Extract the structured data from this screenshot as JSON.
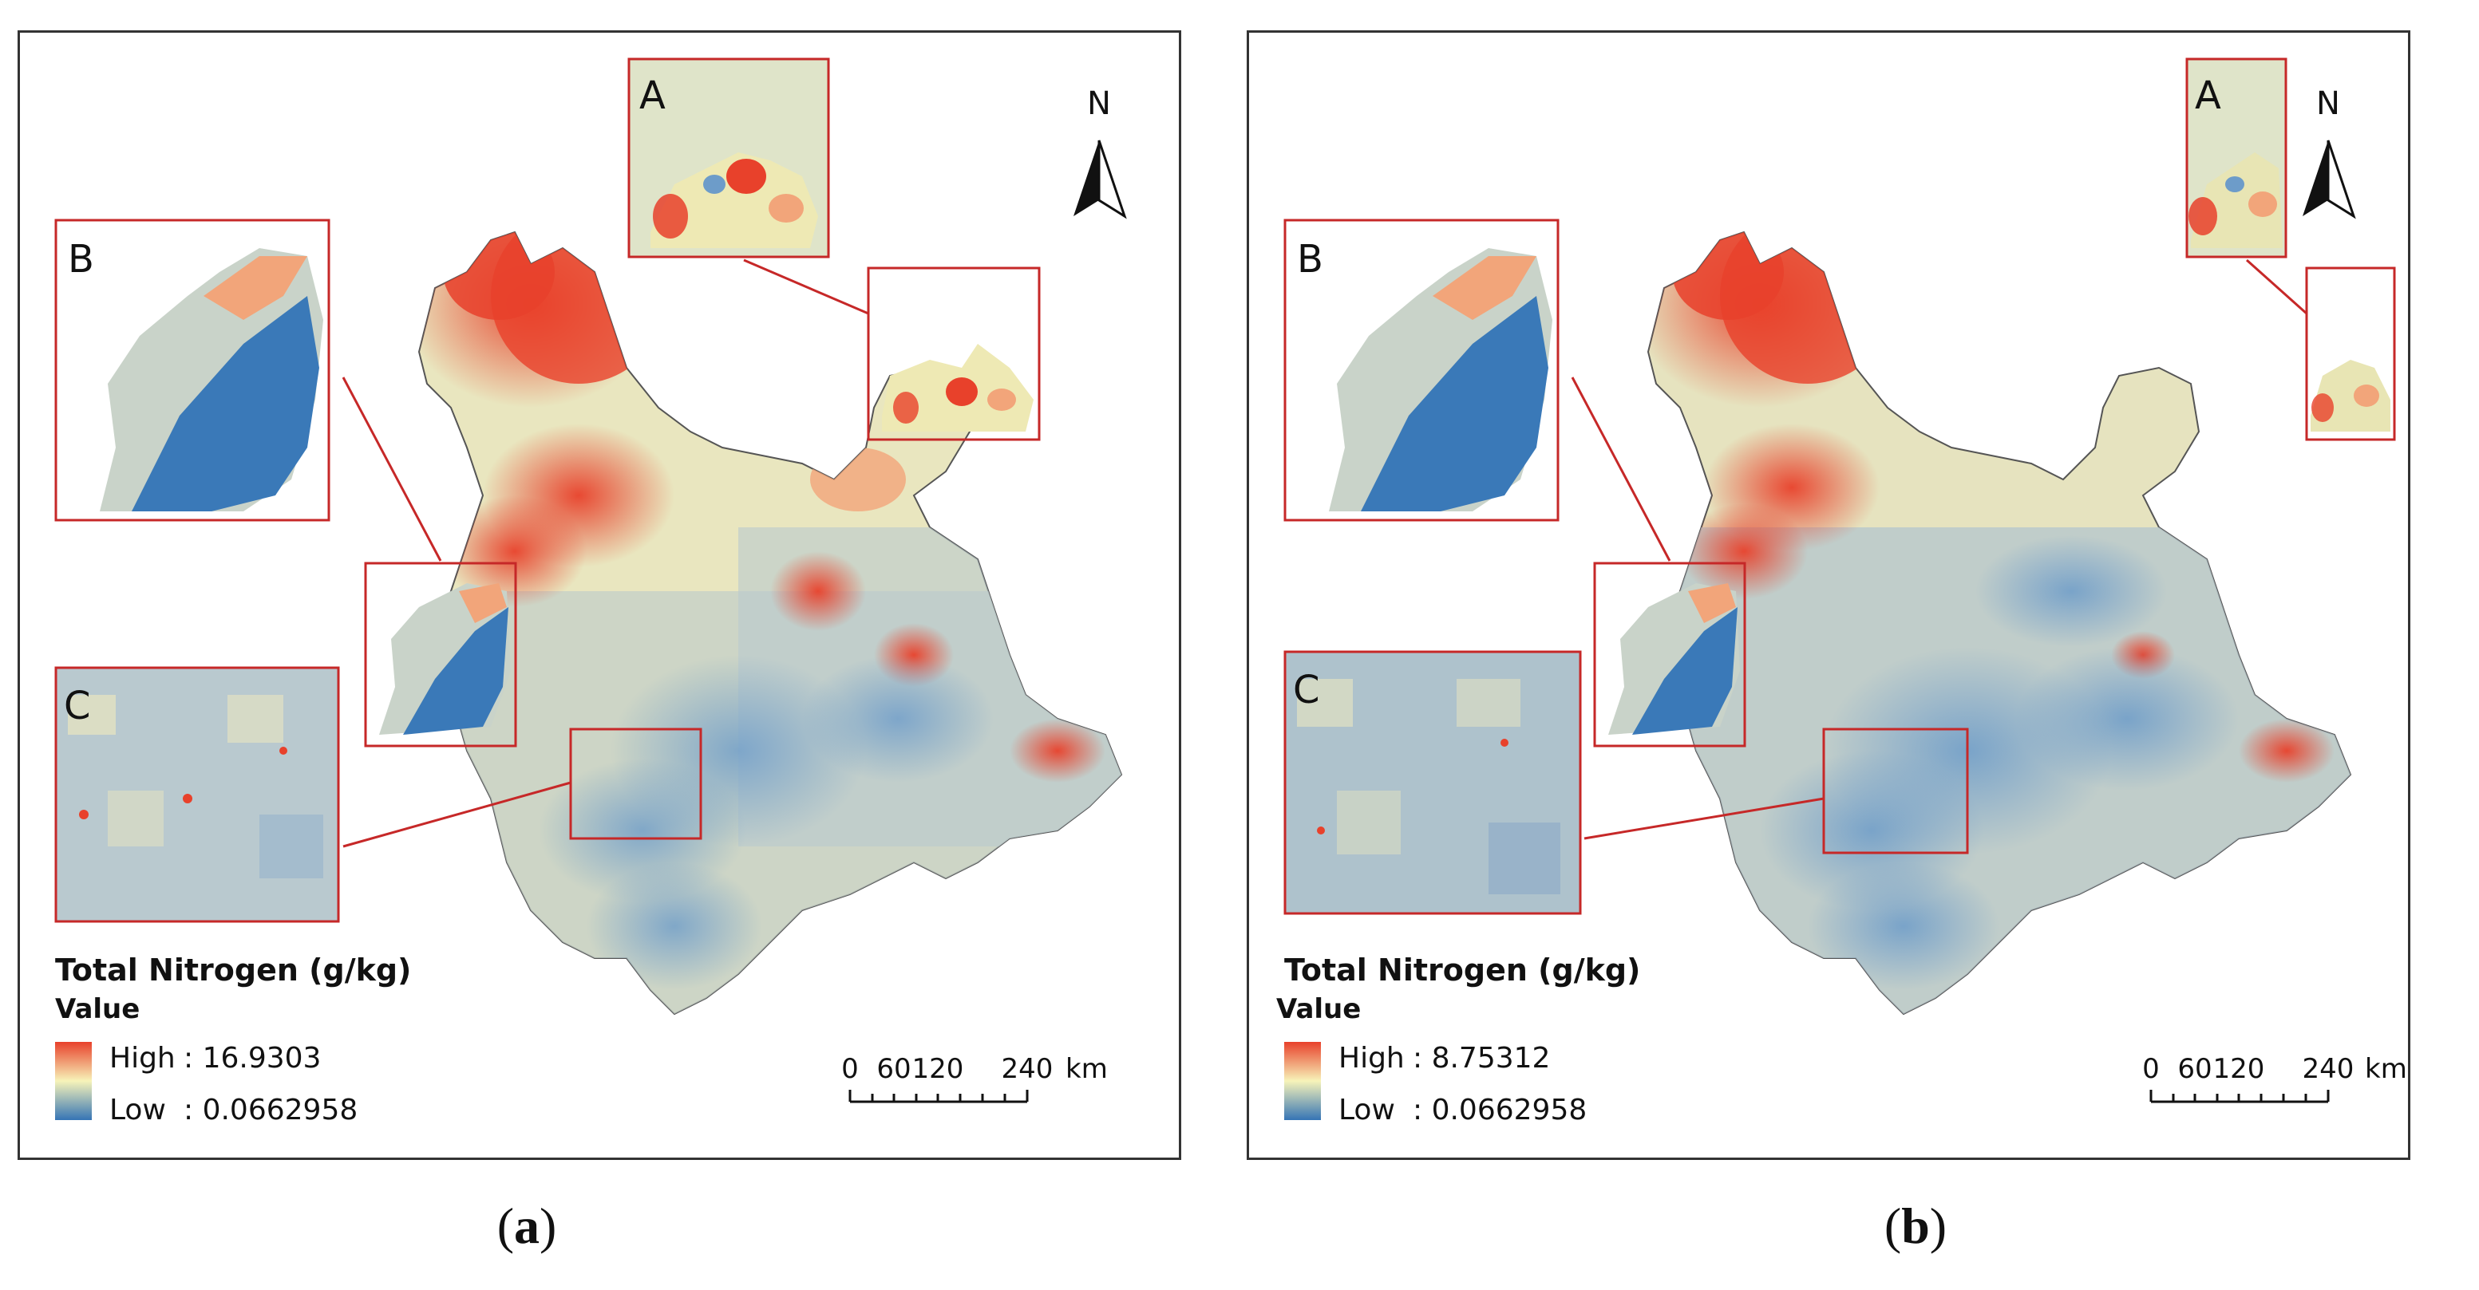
{
  "panels": [
    {
      "id": "a",
      "legend": {
        "title": "Total Nitrogen (g/kg)",
        "subtitle": "Value",
        "high_label": "High",
        "high_value": ": 16.9303",
        "low_label": "Low",
        "low_value": ": 0.0662958"
      },
      "insets": [
        "A",
        "B",
        "C"
      ],
      "north": "N",
      "scale": {
        "ticks": [
          "0",
          "60",
          "120",
          "240"
        ],
        "unit": "km"
      },
      "caption_open": "(",
      "caption_letter": "a",
      "caption_close": ")"
    },
    {
      "id": "b",
      "legend": {
        "title": "Total Nitrogen (g/kg)",
        "subtitle": "Value",
        "high_label": "High",
        "high_value": ": 8.75312",
        "low_label": "Low",
        "low_value": ": 0.0662958"
      },
      "insets": [
        "A",
        "B",
        "C"
      ],
      "north": "N",
      "scale": {
        "ticks": [
          "0",
          "60",
          "120",
          "240"
        ],
        "unit": "km"
      },
      "caption_open": "(",
      "caption_letter": "b",
      "caption_close": ")"
    }
  ],
  "colors": {
    "high": "#e8412b",
    "mid": "#f7f3b9",
    "low": "#3574b5",
    "inset_border": "#c62828"
  }
}
